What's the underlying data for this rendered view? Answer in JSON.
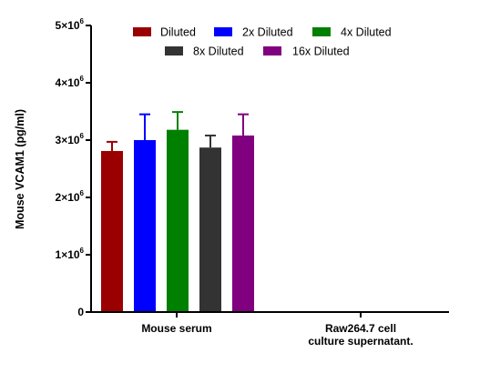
{
  "chart_data": {
    "type": "bar",
    "ylabel": "Mouse VCAM1 (pg/ml)",
    "ylim": [
      0,
      5000000
    ],
    "yticks": [
      {
        "value": 0,
        "label": "0",
        "exp": ""
      },
      {
        "value": 1000000,
        "label": "1×10",
        "exp": "6"
      },
      {
        "value": 2000000,
        "label": "2×10",
        "exp": "6"
      },
      {
        "value": 3000000,
        "label": "3×10",
        "exp": "6"
      },
      {
        "value": 4000000,
        "label": "4×10",
        "exp": "6"
      },
      {
        "value": 5000000,
        "label": "5×10",
        "exp": "6"
      }
    ],
    "categories": [
      "Mouse serum",
      "Raw264.7 cell\nculture supernatant."
    ],
    "legend_position": "top",
    "series": [
      {
        "name": "Diluted",
        "color": "#9b0000",
        "values": [
          2810000,
          null
        ],
        "errors": [
          160000,
          null
        ]
      },
      {
        "name": "2x Diluted",
        "color": "#0000ff",
        "values": [
          3000000,
          null
        ],
        "errors": [
          450000,
          null
        ]
      },
      {
        "name": "4x Diluted",
        "color": "#008000",
        "values": [
          3180000,
          null
        ],
        "errors": [
          310000,
          null
        ]
      },
      {
        "name": "8x Diluted",
        "color": "#333333",
        "values": [
          2870000,
          null
        ],
        "errors": [
          210000,
          null
        ]
      },
      {
        "name": "16x Diluted",
        "color": "#800080",
        "values": [
          3080000,
          null
        ],
        "errors": [
          370000,
          null
        ]
      }
    ]
  }
}
